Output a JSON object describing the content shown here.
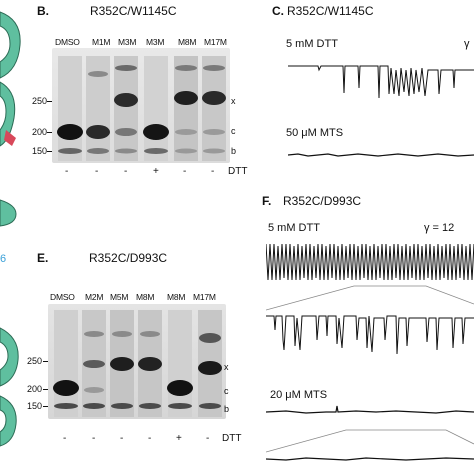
{
  "panel_b": {
    "letter": "B.",
    "title": "R352C/W1145C",
    "lanes": [
      "DMSO",
      "M1M",
      "M3M",
      "M3M",
      "M8M",
      "M17M"
    ],
    "mw_markers": [
      "250",
      "200",
      "150"
    ],
    "band_labels": [
      "x",
      "c",
      "b"
    ],
    "dtt_signs": [
      "-",
      "-",
      "-",
      "+",
      "-",
      "-"
    ],
    "dtt_label": "DTT"
  },
  "panel_c": {
    "letter": "C.",
    "title": "R352C/W1145C",
    "trace1_label": "5 mM DTT",
    "gamma": "γ",
    "trace2_label": "50 μM MTS"
  },
  "panel_e": {
    "letter": "E.",
    "title": "R352C/D993C",
    "lanes": [
      "DMSO",
      "M2M",
      "M5M",
      "M8M",
      "M8M",
      "M17M"
    ],
    "mw_markers": [
      "250",
      "200",
      "150"
    ],
    "band_labels": [
      "x",
      "c",
      "b"
    ],
    "dtt_signs": [
      "-",
      "-",
      "-",
      "-",
      "+",
      "-"
    ],
    "dtt_label": "DTT"
  },
  "panel_f": {
    "letter": "F.",
    "title": "R352C/D993C",
    "trace1_label": "5 mM DTT",
    "gamma": "γ = 12",
    "trace2_label": "20 μM MTS"
  },
  "left_edge": {
    "fragment": "6"
  },
  "colors": {
    "helix": "#5fbf9f",
    "fragment_text": "#3aa0d8"
  }
}
